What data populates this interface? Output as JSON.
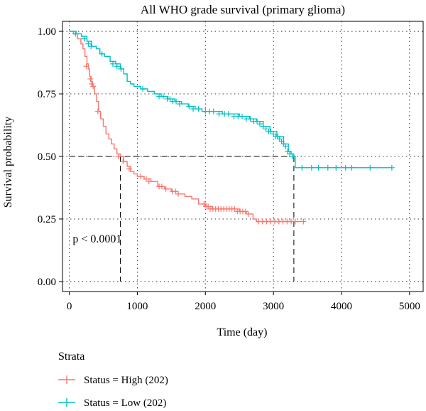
{
  "chart_data": {
    "type": "line",
    "title": "All WHO grade survival (primary glioma)",
    "xlabel": "Time (day)",
    "ylabel": "Survival probability",
    "xlim": [
      -100,
      5200
    ],
    "ylim": [
      -0.04,
      1.04
    ],
    "xticks": [
      0,
      1000,
      2000,
      3000,
      4000,
      5000
    ],
    "xtick_labels": [
      "0",
      "1000",
      "2000",
      "3000",
      "4000",
      "5000"
    ],
    "yticks": [
      0.0,
      0.25,
      0.5,
      0.75,
      1.0
    ],
    "ytick_labels": [
      "0.00",
      "0.25",
      "0.50",
      "0.75",
      "1.00"
    ],
    "grid": true,
    "annotation": "p < 0.0001",
    "median_line_y": 0.5,
    "median_survival": [
      {
        "series": "Status = High (202)",
        "x": 750
      },
      {
        "series": "Status = Low (202)",
        "x": 3300
      }
    ],
    "legend": {
      "title": "Strata",
      "position": "bottom-left"
    },
    "series": [
      {
        "name": "Status = High (202)",
        "color": "#f8766d",
        "steps": [
          [
            0,
            1.0
          ],
          [
            60,
            0.99
          ],
          [
            120,
            0.97
          ],
          [
            170,
            0.95
          ],
          [
            200,
            0.93
          ],
          [
            230,
            0.9
          ],
          [
            260,
            0.87
          ],
          [
            280,
            0.85
          ],
          [
            300,
            0.82
          ],
          [
            320,
            0.8
          ],
          [
            340,
            0.78
          ],
          [
            370,
            0.75
          ],
          [
            400,
            0.72
          ],
          [
            430,
            0.68
          ],
          [
            460,
            0.65
          ],
          [
            500,
            0.62
          ],
          [
            540,
            0.59
          ],
          [
            580,
            0.57
          ],
          [
            620,
            0.55
          ],
          [
            660,
            0.53
          ],
          [
            700,
            0.51
          ],
          [
            750,
            0.5
          ],
          [
            800,
            0.48
          ],
          [
            850,
            0.46
          ],
          [
            900,
            0.44
          ],
          [
            950,
            0.43
          ],
          [
            1000,
            0.42
          ],
          [
            1100,
            0.41
          ],
          [
            1200,
            0.4
          ],
          [
            1300,
            0.38
          ],
          [
            1400,
            0.37
          ],
          [
            1500,
            0.36
          ],
          [
            1600,
            0.35
          ],
          [
            1700,
            0.34
          ],
          [
            1800,
            0.33
          ],
          [
            1900,
            0.31
          ],
          [
            2000,
            0.3
          ],
          [
            2100,
            0.29
          ],
          [
            2300,
            0.29
          ],
          [
            2500,
            0.28
          ],
          [
            2600,
            0.27
          ],
          [
            2700,
            0.25
          ],
          [
            2750,
            0.24
          ],
          [
            3440,
            0.24
          ]
        ],
        "censors": [
          [
            250,
            0.86
          ],
          [
            310,
            0.81
          ],
          [
            330,
            0.79
          ],
          [
            350,
            0.78
          ],
          [
            420,
            0.68
          ],
          [
            720,
            0.5
          ],
          [
            790,
            0.48
          ],
          [
            880,
            0.45
          ],
          [
            1050,
            0.42
          ],
          [
            1130,
            0.41
          ],
          [
            1170,
            0.4
          ],
          [
            1320,
            0.38
          ],
          [
            1360,
            0.38
          ],
          [
            1420,
            0.37
          ],
          [
            1520,
            0.36
          ],
          [
            1560,
            0.36
          ],
          [
            1600,
            0.35
          ],
          [
            1980,
            0.31
          ],
          [
            2010,
            0.3
          ],
          [
            2040,
            0.3
          ],
          [
            2070,
            0.29
          ],
          [
            2110,
            0.29
          ],
          [
            2150,
            0.29
          ],
          [
            2190,
            0.29
          ],
          [
            2230,
            0.29
          ],
          [
            2270,
            0.29
          ],
          [
            2310,
            0.29
          ],
          [
            2350,
            0.29
          ],
          [
            2390,
            0.29
          ],
          [
            2430,
            0.29
          ],
          [
            2470,
            0.28
          ],
          [
            2510,
            0.28
          ],
          [
            2550,
            0.28
          ],
          [
            2590,
            0.28
          ],
          [
            2630,
            0.27
          ],
          [
            2780,
            0.24
          ],
          [
            2840,
            0.24
          ],
          [
            2900,
            0.24
          ],
          [
            2960,
            0.24
          ],
          [
            3020,
            0.24
          ],
          [
            3080,
            0.24
          ],
          [
            3140,
            0.24
          ],
          [
            3200,
            0.24
          ],
          [
            3260,
            0.24
          ],
          [
            3320,
            0.24
          ],
          [
            3440,
            0.24
          ]
        ]
      },
      {
        "name": "Status = Low (202)",
        "color": "#00bfc4",
        "steps": [
          [
            0,
            1.0
          ],
          [
            100,
            0.99
          ],
          [
            180,
            0.98
          ],
          [
            260,
            0.96
          ],
          [
            330,
            0.94
          ],
          [
            400,
            0.93
          ],
          [
            450,
            0.91
          ],
          [
            520,
            0.9
          ],
          [
            600,
            0.88
          ],
          [
            680,
            0.87
          ],
          [
            750,
            0.85
          ],
          [
            800,
            0.83
          ],
          [
            850,
            0.8
          ],
          [
            900,
            0.79
          ],
          [
            950,
            0.78
          ],
          [
            1050,
            0.77
          ],
          [
            1150,
            0.76
          ],
          [
            1250,
            0.75
          ],
          [
            1350,
            0.74
          ],
          [
            1450,
            0.73
          ],
          [
            1550,
            0.72
          ],
          [
            1650,
            0.71
          ],
          [
            1750,
            0.7
          ],
          [
            1850,
            0.69
          ],
          [
            1950,
            0.68
          ],
          [
            2100,
            0.68
          ],
          [
            2250,
            0.67
          ],
          [
            2350,
            0.67
          ],
          [
            2500,
            0.66
          ],
          [
            2650,
            0.65
          ],
          [
            2750,
            0.64
          ],
          [
            2850,
            0.62
          ],
          [
            2950,
            0.6
          ],
          [
            3050,
            0.58
          ],
          [
            3150,
            0.55
          ],
          [
            3220,
            0.52
          ],
          [
            3260,
            0.51
          ],
          [
            3300,
            0.5
          ],
          [
            3320,
            0.455
          ],
          [
            4740,
            0.455
          ]
        ],
        "censors": [
          [
            90,
            0.99
          ],
          [
            220,
            0.97
          ],
          [
            280,
            0.95
          ],
          [
            320,
            0.94
          ],
          [
            480,
            0.91
          ],
          [
            640,
            0.87
          ],
          [
            700,
            0.86
          ],
          [
            760,
            0.85
          ],
          [
            1080,
            0.77
          ],
          [
            1320,
            0.74
          ],
          [
            1380,
            0.74
          ],
          [
            1440,
            0.73
          ],
          [
            1480,
            0.73
          ],
          [
            1520,
            0.72
          ],
          [
            1570,
            0.72
          ],
          [
            1620,
            0.71
          ],
          [
            1760,
            0.7
          ],
          [
            1820,
            0.69
          ],
          [
            1900,
            0.69
          ],
          [
            2000,
            0.68
          ],
          [
            2060,
            0.68
          ],
          [
            2120,
            0.68
          ],
          [
            2200,
            0.67
          ],
          [
            2280,
            0.67
          ],
          [
            2340,
            0.67
          ],
          [
            2420,
            0.66
          ],
          [
            2480,
            0.66
          ],
          [
            2540,
            0.66
          ],
          [
            2600,
            0.65
          ],
          [
            2660,
            0.65
          ],
          [
            2710,
            0.64
          ],
          [
            2760,
            0.64
          ],
          [
            2800,
            0.63
          ],
          [
            2850,
            0.62
          ],
          [
            2890,
            0.61
          ],
          [
            2930,
            0.6
          ],
          [
            2960,
            0.6
          ],
          [
            3000,
            0.59
          ],
          [
            3030,
            0.58
          ],
          [
            3060,
            0.58
          ],
          [
            3090,
            0.57
          ],
          [
            3120,
            0.56
          ],
          [
            3150,
            0.55
          ],
          [
            3180,
            0.54
          ],
          [
            3210,
            0.52
          ],
          [
            3240,
            0.51
          ],
          [
            3280,
            0.5
          ],
          [
            3420,
            0.455
          ],
          [
            3560,
            0.455
          ],
          [
            3660,
            0.455
          ],
          [
            3800,
            0.455
          ],
          [
            3920,
            0.455
          ],
          [
            4060,
            0.455
          ],
          [
            4150,
            0.455
          ],
          [
            4420,
            0.455
          ],
          [
            4740,
            0.455
          ]
        ]
      }
    ]
  }
}
